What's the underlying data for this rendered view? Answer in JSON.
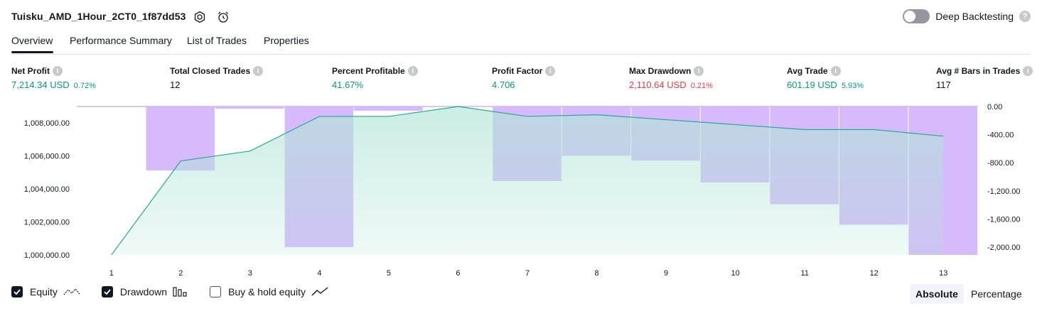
{
  "header": {
    "strategy_name": "Tuisku_AMD_1Hour_2CT0_1f87dd53",
    "deep_backtesting_label": "Deep Backtesting",
    "deep_backtesting_enabled": false,
    "help_icon": "question-icon"
  },
  "tabs": [
    {
      "label": "Overview",
      "active": true
    },
    {
      "label": "Performance Summary",
      "active": false
    },
    {
      "label": "List of Trades",
      "active": false
    },
    {
      "label": "Properties",
      "active": false
    }
  ],
  "metrics": [
    {
      "label": "Net Profit",
      "value": "7,214.34 USD",
      "pct": "0.72%",
      "color": "green"
    },
    {
      "label": "Total Closed Trades",
      "value": "12",
      "pct": "",
      "color": "neutral"
    },
    {
      "label": "Percent Profitable",
      "value": "41.67%",
      "pct": "",
      "color": "green"
    },
    {
      "label": "Profit Factor",
      "value": "4.706",
      "pct": "",
      "color": "green"
    },
    {
      "label": "Max Drawdown",
      "value": "2,110.64 USD",
      "pct": "0.21%",
      "color": "red"
    },
    {
      "label": "Avg Trade",
      "value": "601.19 USD",
      "pct": "5.93%",
      "color": "green"
    },
    {
      "label": "Avg # Bars in Trades",
      "value": "117",
      "pct": "",
      "color": "neutral"
    }
  ],
  "chart_data": {
    "type": "area",
    "x": [
      1,
      2,
      3,
      4,
      5,
      6,
      7,
      8,
      9,
      10,
      11,
      12,
      13
    ],
    "series": [
      {
        "type": "area",
        "axis": "left",
        "values": [
          1000000,
          1005700,
          1006300,
          1008400,
          1008400,
          1009000,
          1008400,
          1008500,
          1008200,
          1007900,
          1007600,
          1007600,
          1007200
        ]
      },
      {
        "type": "bar",
        "axis": "right",
        "values": [
          0,
          -910,
          -30,
          -2000,
          -60,
          0,
          -1060,
          -700,
          -770,
          -1080,
          -1390,
          -1680,
          -2110
        ]
      }
    ],
    "left_axis": {
      "ticks": [
        "1,000,000.00",
        "1,002,000.00",
        "1,004,000.00",
        "1,006,000.00",
        "1,008,000.00"
      ],
      "range": [
        1000000,
        1009000
      ]
    },
    "right_axis": {
      "ticks": [
        "0.00",
        "-400.00",
        "-800.00",
        "-1,200.00",
        "-1,600.00",
        "-2,000.00"
      ],
      "range": [
        -2110,
        0
      ]
    },
    "x_tick_labels": [
      "1",
      "2",
      "3",
      "4",
      "5",
      "6",
      "7",
      "8",
      "9",
      "10",
      "11",
      "12",
      "13"
    ],
    "colors": {
      "equity_line": "#22ab94",
      "equity_fill": "#b2e5d8",
      "drawdown_bar": "#d1b3fb"
    }
  },
  "legend": {
    "equity": {
      "label": "Equity",
      "checked": true
    },
    "drawdown": {
      "label": "Drawdown",
      "checked": true
    },
    "buy_hold": {
      "label": "Buy & hold equity",
      "checked": false
    }
  },
  "modes": [
    {
      "label": "Absolute",
      "active": true
    },
    {
      "label": "Percentage",
      "active": false
    }
  ]
}
